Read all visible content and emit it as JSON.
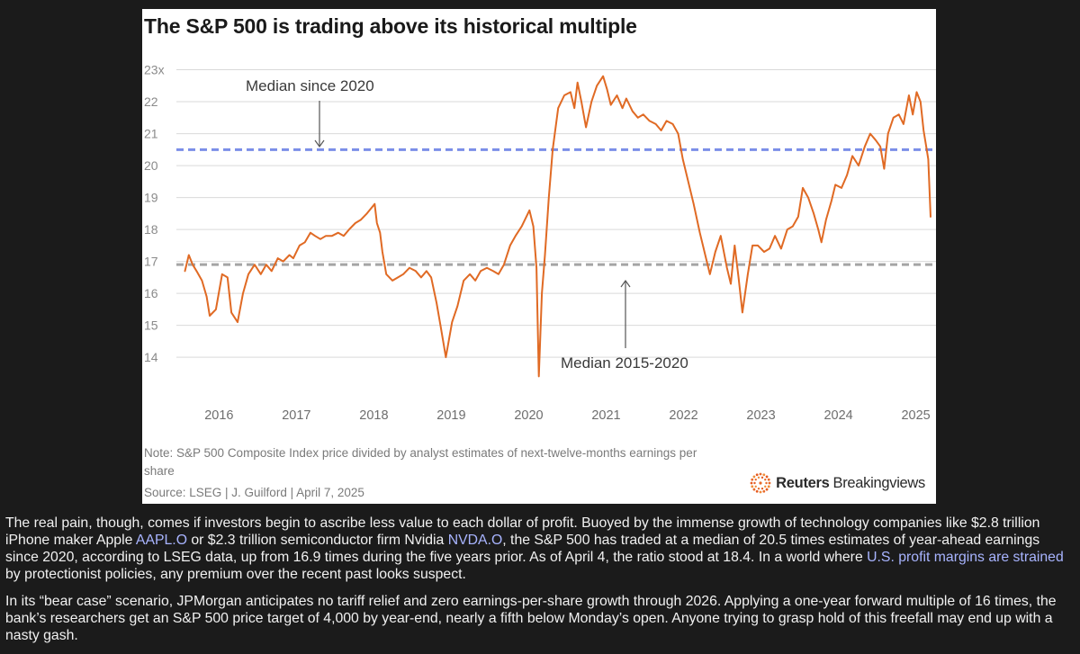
{
  "chart_data": {
    "type": "line",
    "title": "The S&P 500 is trading above its historical multiple",
    "xlabel": "",
    "ylabel": "",
    "x_ticks": [
      "2016",
      "2017",
      "2018",
      "2019",
      "2020",
      "2021",
      "2022",
      "2023",
      "2024",
      "2025"
    ],
    "y_ticks": [
      "23x",
      "22",
      "21",
      "20",
      "19",
      "18",
      "17",
      "16",
      "15",
      "14"
    ],
    "xlim": [
      2015.42,
      2025.3
    ],
    "ylim": [
      13.3,
      23.1
    ],
    "grid": "horizontal",
    "series": [
      {
        "color": "#e06a24",
        "x": [
          2015.6,
          2015.65,
          2015.7,
          2015.75,
          2015.82,
          2015.88,
          2015.92,
          2016.0,
          2016.08,
          2016.15,
          2016.2,
          2016.28,
          2016.35,
          2016.42,
          2016.5,
          2016.58,
          2016.65,
          2016.72,
          2016.8,
          2016.87,
          2016.95,
          2017.0,
          2017.08,
          2017.15,
          2017.22,
          2017.28,
          2017.35,
          2017.42,
          2017.5,
          2017.58,
          2017.65,
          2017.72,
          2017.8,
          2017.87,
          2017.95,
          2018.05,
          2018.08,
          2018.12,
          2018.15,
          2018.2,
          2018.28,
          2018.35,
          2018.42,
          2018.5,
          2018.58,
          2018.65,
          2018.72,
          2018.78,
          2018.85,
          2018.9,
          2018.97,
          2019.05,
          2019.12,
          2019.2,
          2019.28,
          2019.35,
          2019.42,
          2019.5,
          2019.58,
          2019.65,
          2019.72,
          2019.8,
          2019.87,
          2019.95,
          2020.05,
          2020.1,
          2020.14,
          2020.17,
          2020.21,
          2020.25,
          2020.3,
          2020.35,
          2020.42,
          2020.5,
          2020.58,
          2020.63,
          2020.67,
          2020.72,
          2020.78,
          2020.85,
          2020.92,
          2021.0,
          2021.05,
          2021.1,
          2021.18,
          2021.25,
          2021.3,
          2021.38,
          2021.45,
          2021.52,
          2021.6,
          2021.68,
          2021.75,
          2021.82,
          2021.9,
          2021.97,
          2022.03,
          2022.1,
          2022.17,
          2022.25,
          2022.32,
          2022.38,
          2022.45,
          2022.52,
          2022.6,
          2022.65,
          2022.7,
          2022.75,
          2022.8,
          2022.87,
          2022.93,
          2023.0,
          2023.08,
          2023.15,
          2023.22,
          2023.3,
          2023.38,
          2023.45,
          2023.52,
          2023.58,
          2023.65,
          2023.72,
          2023.78,
          2023.82,
          2023.88,
          2023.95,
          2024.0,
          2024.08,
          2024.15,
          2024.22,
          2024.3,
          2024.38,
          2024.45,
          2024.52,
          2024.58,
          2024.63,
          2024.68,
          2024.75,
          2024.82,
          2024.88,
          2024.95,
          2025.0,
          2025.05,
          2025.1,
          2025.14,
          2025.18,
          2025.2,
          2025.23
        ],
        "y": [
          16.7,
          17.2,
          16.9,
          16.7,
          16.4,
          15.9,
          15.3,
          15.5,
          16.6,
          16.5,
          15.4,
          15.1,
          16.0,
          16.6,
          16.9,
          16.6,
          16.9,
          16.7,
          17.1,
          17.0,
          17.2,
          17.1,
          17.5,
          17.6,
          17.9,
          17.8,
          17.7,
          17.8,
          17.8,
          17.9,
          17.8,
          18.0,
          18.2,
          18.3,
          18.5,
          18.8,
          18.2,
          17.9,
          17.3,
          16.6,
          16.4,
          16.5,
          16.6,
          16.8,
          16.7,
          16.5,
          16.7,
          16.5,
          15.7,
          15.0,
          14.0,
          15.1,
          15.6,
          16.4,
          16.6,
          16.4,
          16.7,
          16.8,
          16.7,
          16.6,
          16.9,
          17.5,
          17.8,
          18.1,
          18.6,
          18.1,
          16.8,
          13.4,
          16.0,
          17.2,
          19.0,
          20.5,
          21.8,
          22.2,
          22.3,
          21.8,
          22.6,
          22.0,
          21.2,
          22.0,
          22.5,
          22.8,
          22.4,
          21.9,
          22.2,
          21.8,
          22.1,
          21.7,
          21.5,
          21.6,
          21.4,
          21.3,
          21.1,
          21.4,
          21.3,
          21.0,
          20.2,
          19.5,
          18.8,
          17.9,
          17.2,
          16.6,
          17.3,
          17.8,
          16.8,
          16.3,
          17.5,
          16.5,
          15.4,
          16.6,
          17.5,
          17.5,
          17.3,
          17.4,
          17.8,
          17.4,
          18.0,
          18.1,
          18.4,
          19.3,
          19.0,
          18.5,
          18.0,
          17.6,
          18.3,
          18.9,
          19.4,
          19.3,
          19.7,
          20.3,
          20.0,
          20.6,
          21.0,
          20.8,
          20.6,
          19.9,
          21.0,
          21.5,
          21.6,
          21.3,
          22.2,
          21.6,
          22.3,
          22.0,
          21.1,
          20.5,
          20.2,
          18.4
        ]
      }
    ],
    "reference_lines": [
      {
        "label": "Median since 2020",
        "value": 20.5,
        "color": "#7b8ee8"
      },
      {
        "label": "Median 2015-2020",
        "value": 16.9,
        "color": "#a5a5a5"
      }
    ],
    "annotations": [
      "Median since 2020",
      "Median 2015-2020"
    ]
  },
  "figure": {
    "note": "Note: S&P 500 Composite Index price divided by analyst estimates of next-twelve-months earnings per share",
    "source": "Source: LSEG | J. Guilford | April 7, 2025",
    "brand_bold": "Reuters",
    "brand_light": "Breakingviews"
  },
  "article": {
    "p1_a": "The real pain, though, comes if investors begin to ascribe less value to each dollar of profit. Buoyed by the immense growth of technology companies like $2.8 trillion iPhone maker Apple ",
    "p1_link1": "AAPL.O",
    "p1_b": " or $2.3 trillion semiconductor firm Nvidia ",
    "p1_link2": "NVDA.O",
    "p1_c": ", the S&P 500 has traded at a median of 20.5 times estimates of year-ahead earnings since 2020, according to LSEG data, up from 16.9 times during the five years prior. As of April 4, the ratio stood at 18.4. In a world where ",
    "p1_link3": "U.S. profit margins are strained",
    "p1_d": " by protectionist policies, any premium over the recent past looks suspect.",
    "p2": "In its “bear case” scenario, JPMorgan anticipates no tariff relief and zero earnings-per-share growth through 2026. Applying a one-year forward multiple of 16 times, the bank’s researchers get an S&P 500 price target of 4,000 by year-end, nearly a fifth below Monday’s open. Anyone trying to grasp hold of this freefall may end up with a nasty gash."
  }
}
